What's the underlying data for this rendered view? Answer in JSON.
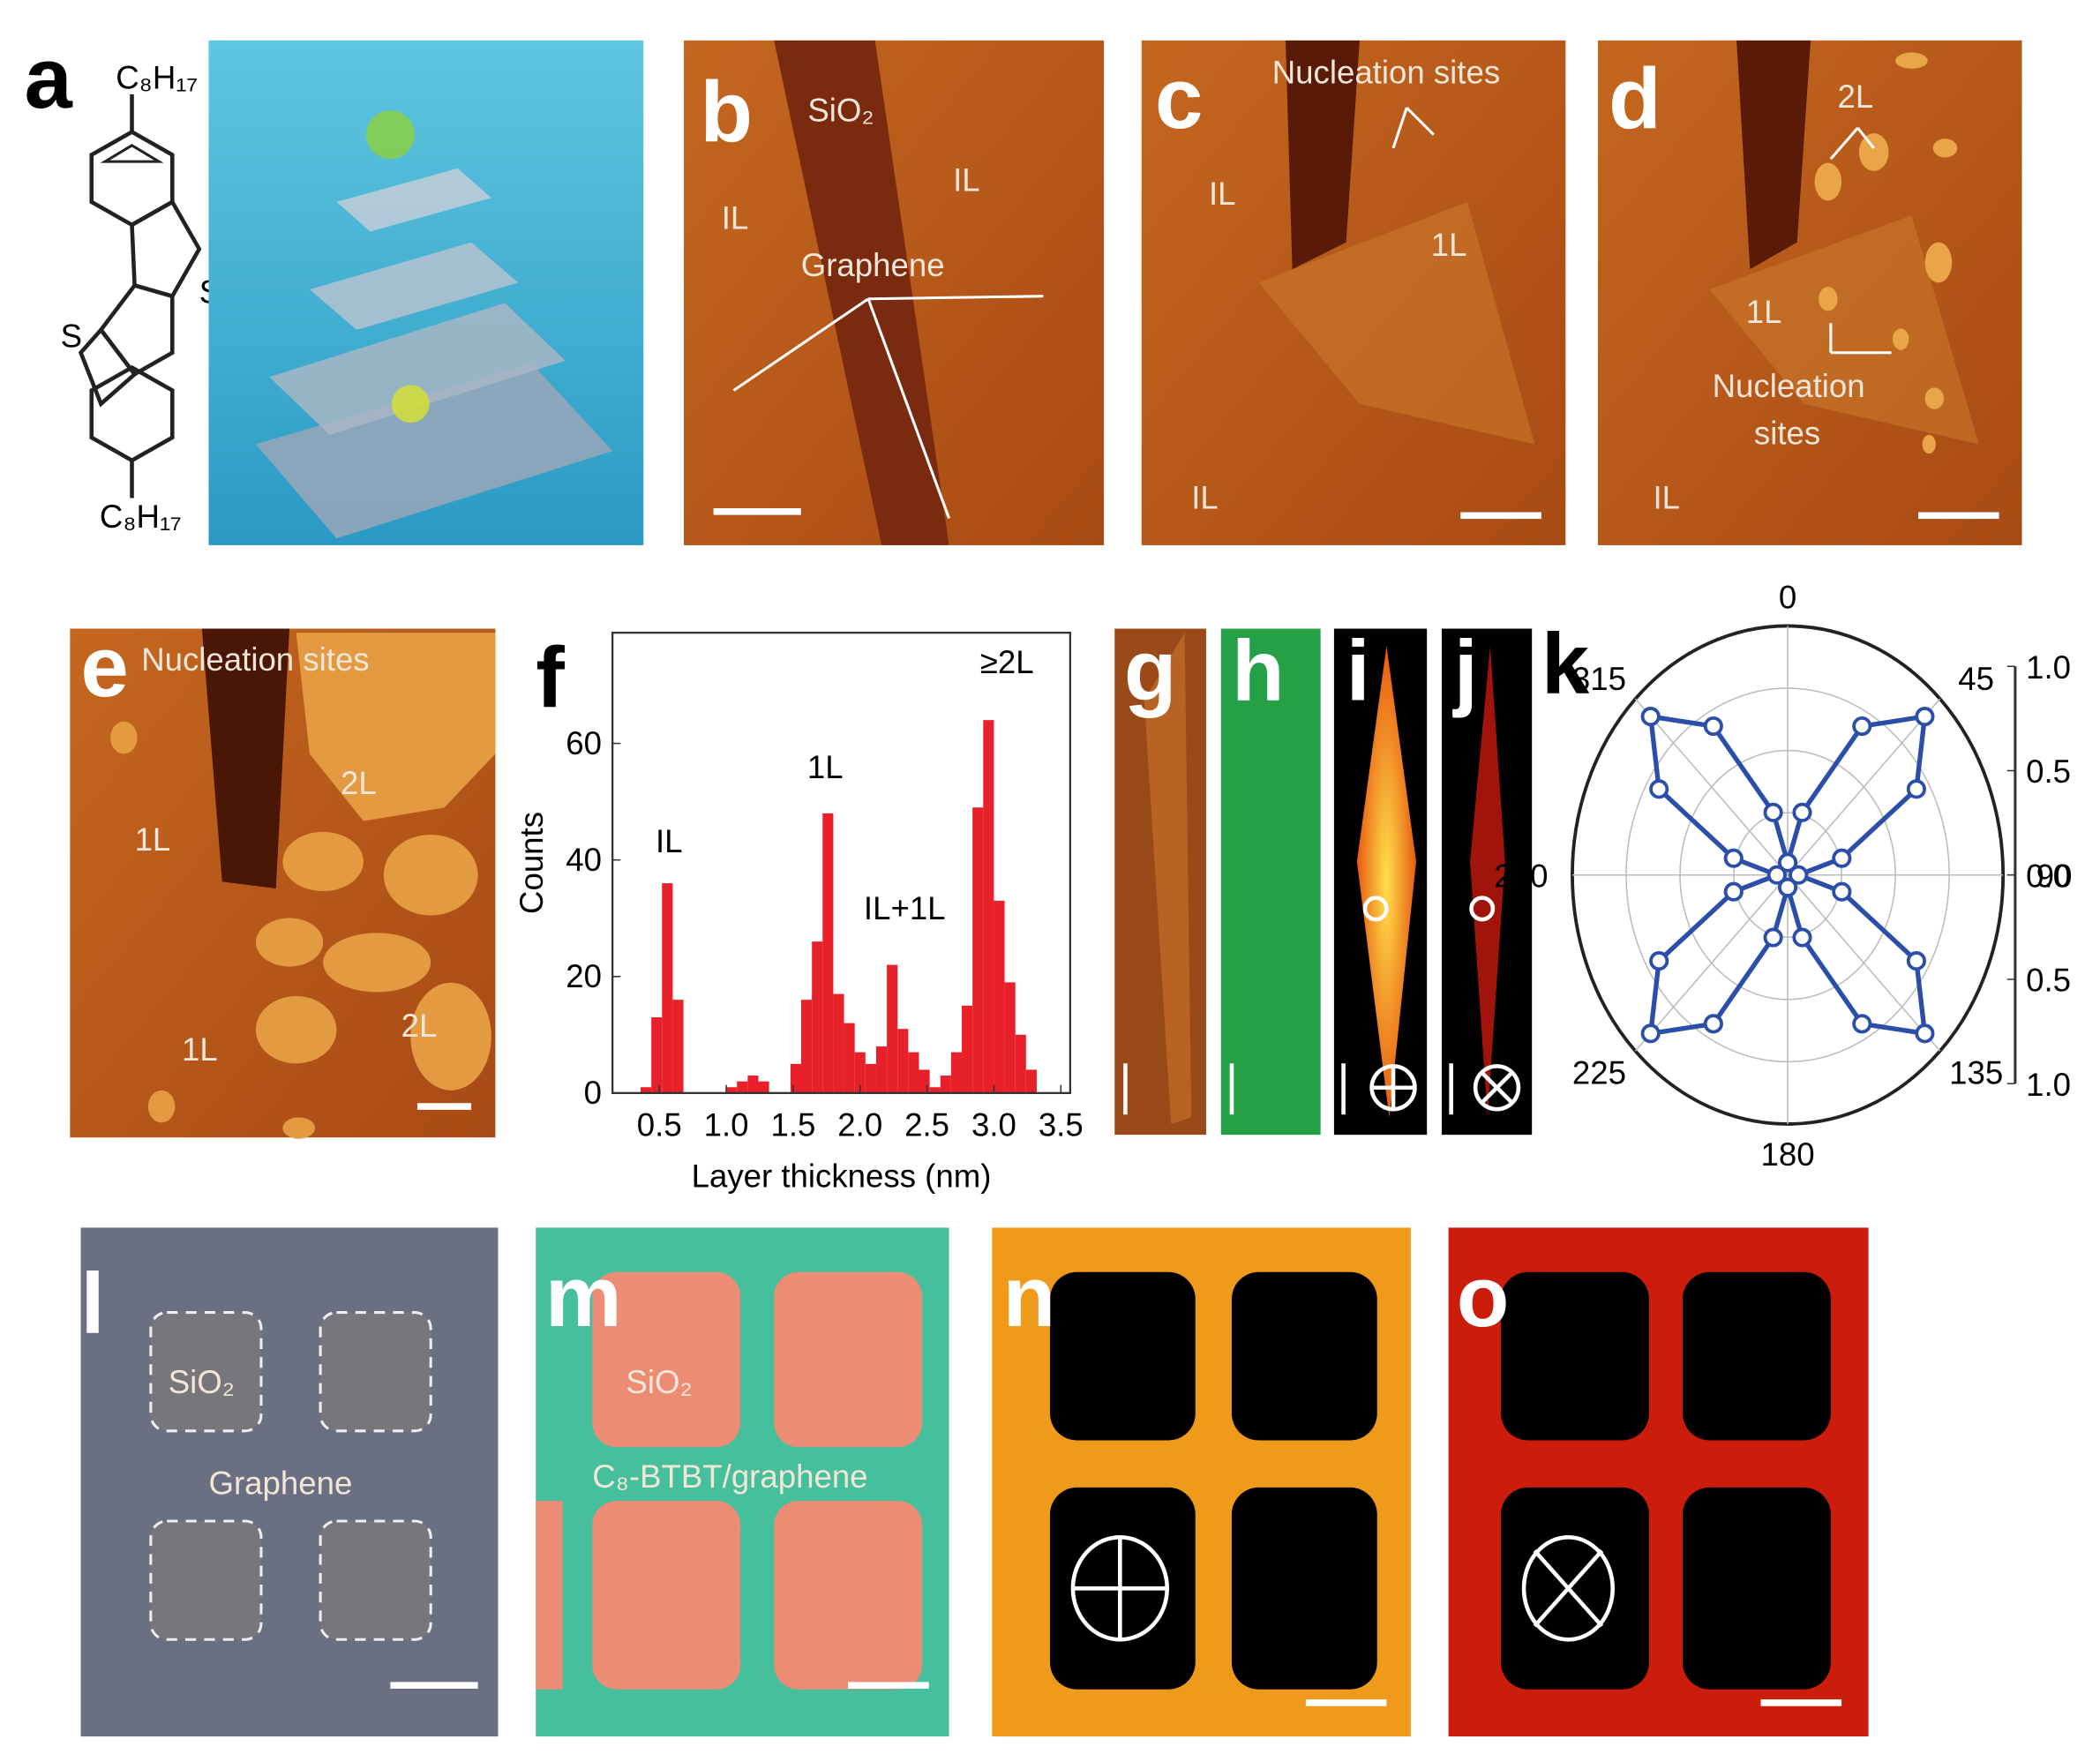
{
  "panels": {
    "a": {
      "label": "a",
      "substituent_top": "C₈H₁₇",
      "substituent_bottom": "C₈H₁₇",
      "sulfur_1": "S",
      "sulfur_2": "S"
    },
    "b": {
      "label": "b",
      "texts": [
        "SiO₂",
        "IL",
        "IL",
        "Graphene"
      ]
    },
    "c": {
      "label": "c",
      "texts": [
        "Nucleation sites",
        "IL",
        "1L",
        "IL"
      ]
    },
    "d": {
      "label": "d",
      "texts": [
        "2L",
        "1L",
        "Nucleation",
        "sites",
        "IL"
      ]
    },
    "e": {
      "label": "e",
      "texts": [
        "Nucleation sites",
        "1L",
        "2L",
        "1L",
        "2L"
      ]
    },
    "f": {
      "label": "f"
    },
    "g": {
      "label": "g"
    },
    "h": {
      "label": "h"
    },
    "i": {
      "label": "i"
    },
    "j": {
      "label": "j"
    },
    "k": {
      "label": "k"
    },
    "l": {
      "label": "l",
      "texts": [
        "SiO₂",
        "Graphene"
      ]
    },
    "m": {
      "label": "m",
      "texts": [
        "SiO₂",
        "C₈-BTBT/graphene"
      ]
    },
    "n": {
      "label": "n"
    },
    "o": {
      "label": "o"
    }
  },
  "chart_data": [
    {
      "type": "histogram",
      "xlabel": "Layer thickness (nm)",
      "ylabel": "Counts",
      "color": "#e8202a",
      "bins": [
        0.2,
        0.28,
        0.36,
        0.44,
        0.52,
        0.6,
        0.68,
        0.76,
        0.84,
        0.92,
        1.0,
        1.08,
        1.16,
        1.24,
        1.32,
        1.4,
        1.48,
        1.56,
        1.64,
        1.72,
        1.8,
        1.88,
        1.96,
        2.04,
        2.12,
        2.2,
        2.28,
        2.36,
        2.44,
        2.52,
        2.6,
        2.68,
        2.76,
        2.84,
        2.92,
        3.0,
        3.08,
        3.16,
        3.24,
        3.32,
        3.4
      ],
      "values": [
        0,
        0,
        1,
        13,
        36,
        16,
        0,
        0,
        0,
        0,
        1,
        2,
        3,
        2,
        0,
        0,
        5,
        16,
        26,
        48,
        17,
        12,
        7,
        5,
        8,
        22,
        11,
        7,
        4,
        1,
        3,
        7,
        15,
        49,
        64,
        33,
        19,
        10,
        4,
        0
      ],
      "xlim": [
        0.15,
        3.57
      ],
      "ylim": [
        0,
        79
      ],
      "xticks": [
        0.5,
        {
          "value": 1,
          "label": "1.0"
        },
        1.5,
        {
          "value": 2,
          "label": "2.0"
        },
        2.5,
        {
          "value": 3,
          "label": "3.0"
        },
        3.5
      ],
      "yticks": [
        0,
        20,
        40,
        60
      ],
      "annotations": [
        "IL",
        "1L",
        "IL+1L",
        "≥2L"
      ]
    },
    {
      "type": "polar",
      "color": "#2b4fa8",
      "theta": [
        0,
        15,
        30,
        45,
        60,
        75,
        90,
        105,
        120,
        135,
        150,
        165,
        180,
        195,
        210,
        225,
        240,
        255,
        270,
        285,
        300,
        315,
        330,
        345
      ],
      "values": [
        0.05,
        0.26,
        0.69,
        0.9,
        0.69,
        0.26,
        0.05,
        0.26,
        0.69,
        0.9,
        0.69,
        0.26,
        0.05,
        0.26,
        0.69,
        0.9,
        0.69,
        0.26,
        0.05,
        0.26,
        0.69,
        0.9,
        0.69,
        0.26
      ],
      "rlim": [
        0,
        1
      ],
      "rticks": [
        0.25,
        0.5,
        0.75,
        1
      ],
      "angle_ticks": [
        0,
        45,
        90,
        135,
        180,
        225,
        270,
        315
      ],
      "scale_ticks": [
        {
          "value": 1,
          "label": "1.0"
        },
        0.5,
        {
          "value": 0,
          "label": "0.0"
        },
        {
          "value": -0.5,
          "label": "0.5"
        },
        {
          "value": -1,
          "label": "1.0"
        }
      ]
    }
  ]
}
